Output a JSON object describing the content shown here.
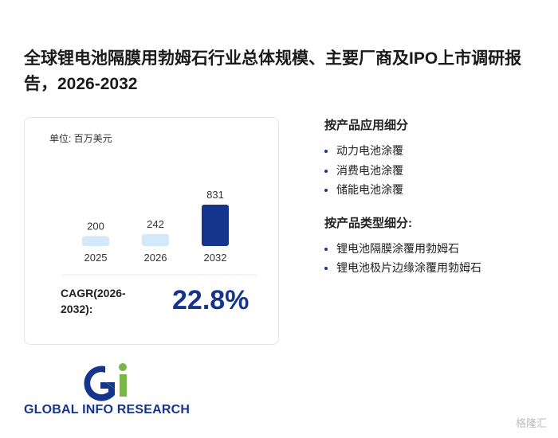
{
  "title": "全球锂电池隔膜用勃姆石行业总体规模、主要厂商及IPO上市调研报告，2026-2032",
  "chart_data": {
    "type": "bar",
    "unit": "单位: 百万美元",
    "categories": [
      "2025",
      "2026",
      "2032"
    ],
    "values": [
      200,
      242,
      831
    ],
    "colors": [
      "#d4e8f8",
      "#d4e8f8",
      "#15358c"
    ]
  },
  "cagr": {
    "label": "CAGR(2026-2032):",
    "value": 22.8,
    "value_label": "22.8%"
  },
  "segments": [
    {
      "title": "按产品应用细分",
      "items": [
        "动力电池涂覆",
        "消费电池涂覆",
        "储能电池涂覆"
      ]
    },
    {
      "title": "按产品类型细分:",
      "items": [
        "锂电池隔膜涂覆用勃姆石",
        "锂电池极片边缘涂覆用勃姆石"
      ]
    }
  ],
  "logo": "GLOBAL INFO RESEARCH",
  "watermark": "格隆汇"
}
